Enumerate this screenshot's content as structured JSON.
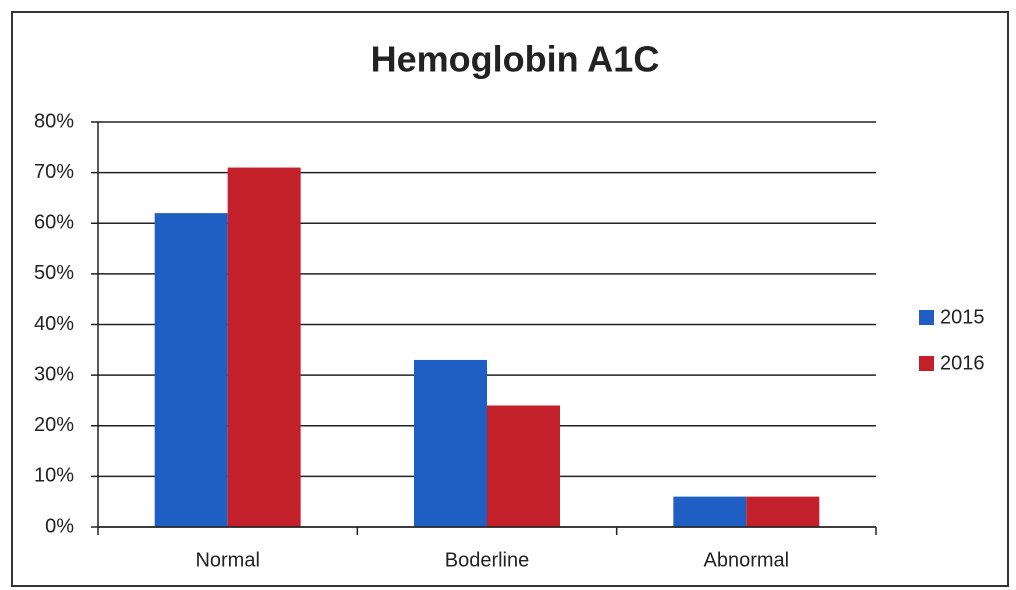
{
  "chart_data": {
    "type": "bar",
    "title": "Hemoglobin A1C",
    "categories": [
      "Normal",
      "Boderline",
      "Abnormal"
    ],
    "series": [
      {
        "name": "2015",
        "color": "#1f5fc4",
        "values": [
          62,
          33,
          6
        ]
      },
      {
        "name": "2016",
        "color": "#c3202c",
        "values": [
          71,
          24,
          6
        ]
      }
    ],
    "ylim": [
      0,
      80
    ],
    "yticks": [
      {
        "value": 0,
        "label": "0%"
      },
      {
        "value": 10,
        "label": "10%"
      },
      {
        "value": 20,
        "label": "20%"
      },
      {
        "value": 30,
        "label": "30%"
      },
      {
        "value": 40,
        "label": "40%"
      },
      {
        "value": 50,
        "label": "50%"
      },
      {
        "value": 60,
        "label": "60%"
      },
      {
        "value": 70,
        "label": "70%"
      },
      {
        "value": 80,
        "label": "80%"
      }
    ],
    "grid": true,
    "legend": "right"
  }
}
